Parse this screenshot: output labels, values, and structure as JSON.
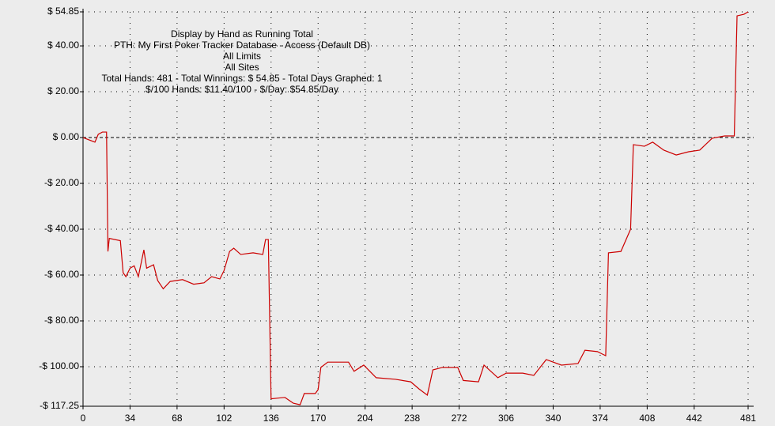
{
  "chart_data": {
    "type": "line",
    "title": "Display by Hand as Running Total",
    "subtitle_lines": [
      "PTH: My First Poker Tracker Database - Access (Default DB)",
      "All Limits",
      "All Sites",
      "Total Hands: 481 - Total Winnings: $ 54.85 - Total Days Graphed: 1",
      "$/100 Hands: $11.40/100 - $/Day: $54.85/Day"
    ],
    "x": [
      0,
      8.6,
      11,
      14,
      17,
      18,
      19,
      27,
      29,
      31,
      34,
      37,
      40,
      44,
      46,
      51,
      54,
      58,
      63,
      72,
      80,
      87.5,
      93,
      99,
      102,
      106,
      109,
      114,
      123,
      130,
      132,
      134,
      136,
      146,
      152,
      157,
      160,
      168,
      170,
      172,
      177,
      192,
      196,
      203,
      212,
      226,
      237,
      243,
      249,
      253,
      260,
      271,
      275,
      286,
      290,
      300,
      306,
      318,
      326,
      335,
      346,
      358,
      363,
      372,
      378,
      380,
      389,
      396,
      398,
      406,
      412,
      420,
      429,
      438,
      446,
      455,
      464,
      471,
      473,
      478,
      481
    ],
    "series": [
      {
        "name": "Running Total",
        "color": "#cc0000",
        "values": [
          0,
          -2,
          1.4,
          2.4,
          2.4,
          -49.7,
          -44,
          -45,
          -59,
          -60.7,
          -57,
          -56,
          -60.7,
          -49,
          -57,
          -55.5,
          -62.4,
          -66,
          -62.8,
          -62,
          -64,
          -63.4,
          -60.7,
          -61.7,
          -58,
          -49.7,
          -48.3,
          -51,
          -50.3,
          -51,
          -44.5,
          -44.5,
          -114,
          -113.4,
          -115.9,
          -116.6,
          -111.7,
          -111.7,
          -110,
          -100.3,
          -98,
          -98,
          -102,
          -99.3,
          -104.8,
          -105.5,
          -106.6,
          -109.7,
          -112.4,
          -101.4,
          -100.3,
          -100.3,
          -106,
          -106.6,
          -99.3,
          -104.8,
          -102.8,
          -102.8,
          -103.8,
          -96.9,
          -99.3,
          -98.6,
          -92.8,
          -93.4,
          -95.2,
          -50.3,
          -49.7,
          -40,
          -3.1,
          -3.8,
          -2,
          -5.5,
          -7.6,
          -6.2,
          -5.5,
          -0.3,
          0.7,
          0.7,
          53.1,
          53.8,
          54.85
        ]
      }
    ],
    "xlim": [
      0,
      485
    ],
    "xticks": [
      0,
      34,
      68,
      102,
      136,
      170,
      204,
      238,
      272,
      306,
      340,
      374,
      408,
      442,
      481
    ],
    "ylim": [
      -117.25,
      54.85
    ],
    "yticks": [
      {
        "value": 54.85,
        "label": "$ 54.85"
      },
      {
        "value": 40,
        "label": "$ 40.00"
      },
      {
        "value": 20,
        "label": "$ 20.00"
      },
      {
        "value": 0,
        "label": "$ 0.00"
      },
      {
        "value": -20,
        "label": "-$ 20.00"
      },
      {
        "value": -40,
        "label": "-$ 40.00"
      },
      {
        "value": -60,
        "label": "-$ 60.00"
      },
      {
        "value": -80,
        "label": "-$ 80.00"
      },
      {
        "value": -100,
        "label": "-$ 100.00"
      },
      {
        "value": -117.25,
        "label": "-$ 117.25"
      }
    ],
    "grid": true
  }
}
